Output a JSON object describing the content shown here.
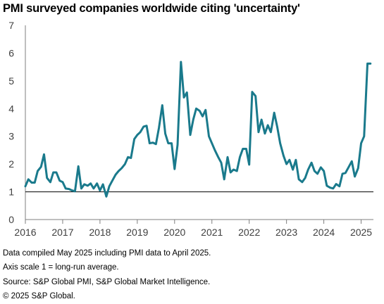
{
  "title": "PMI surveyed companies worldwide citing 'uncertainty'",
  "notes": [
    "Data compiled May 2025 including PMI data to April 2025.",
    "Axis scale 1 = long-run average.",
    "Source: S&P Global PMI, S&P Global Market Intelligence.",
    "© 2025 S&P Global."
  ],
  "colors": {
    "series": "#1a7a8c",
    "axis": "#000000",
    "text": "#404040"
  },
  "chart_data": {
    "type": "line",
    "title": "PMI surveyed companies worldwide citing 'uncertainty'",
    "xlabel": "",
    "ylabel": "",
    "xlim": [
      2016.0,
      2025.33
    ],
    "ylim": [
      0,
      7
    ],
    "yticks": [
      "0",
      "1",
      "2",
      "3",
      "4",
      "5",
      "6",
      "7"
    ],
    "xticks": [
      "2016",
      "2017",
      "2018",
      "2019",
      "2020",
      "2021",
      "2022",
      "2023",
      "2024",
      "2025"
    ],
    "reference_line": 1,
    "grid": false,
    "legend": "none",
    "series": [
      {
        "x": [
          2016.0,
          2016.08,
          2016.17,
          2016.25,
          2016.33,
          2016.42,
          2016.5,
          2016.58,
          2016.67,
          2016.75,
          2016.83,
          2016.92,
          2017.0,
          2017.08,
          2017.17,
          2017.25,
          2017.33,
          2017.42,
          2017.5,
          2017.58,
          2017.67,
          2017.75,
          2017.83,
          2017.92,
          2018.0,
          2018.08,
          2018.17,
          2018.25,
          2018.33,
          2018.42,
          2018.5,
          2018.58,
          2018.67,
          2018.75,
          2018.83,
          2018.92,
          2019.0,
          2019.08,
          2019.17,
          2019.25,
          2019.33,
          2019.42,
          2019.5,
          2019.58,
          2019.67,
          2019.75,
          2019.83,
          2019.92,
          2020.0,
          2020.08,
          2020.17,
          2020.25,
          2020.33,
          2020.42,
          2020.5,
          2020.58,
          2020.67,
          2020.75,
          2020.83,
          2020.92,
          2021.0,
          2021.08,
          2021.17,
          2021.25,
          2021.33,
          2021.42,
          2021.5,
          2021.58,
          2021.67,
          2021.75,
          2021.83,
          2021.92,
          2022.0,
          2022.08,
          2022.17,
          2022.25,
          2022.33,
          2022.42,
          2022.5,
          2022.58,
          2022.67,
          2022.75,
          2022.83,
          2022.92,
          2023.0,
          2023.08,
          2023.17,
          2023.25,
          2023.33,
          2023.42,
          2023.5,
          2023.58,
          2023.67,
          2023.75,
          2023.83,
          2023.92,
          2024.0,
          2024.08,
          2024.17,
          2024.25,
          2024.33,
          2024.42,
          2024.5,
          2024.58,
          2024.67,
          2024.75,
          2024.83,
          2024.92,
          2025.0,
          2025.08,
          2025.17,
          2025.25
        ],
        "y": [
          1.2,
          1.45,
          1.33,
          1.33,
          1.75,
          1.9,
          2.35,
          1.5,
          1.35,
          1.7,
          1.7,
          1.4,
          1.35,
          1.12,
          1.1,
          1.05,
          1.02,
          1.92,
          1.12,
          1.27,
          1.22,
          1.3,
          1.12,
          1.3,
          1.05,
          1.27,
          0.83,
          1.2,
          1.4,
          1.62,
          1.75,
          1.85,
          2.0,
          2.25,
          2.22,
          2.9,
          3.05,
          3.15,
          3.35,
          3.38,
          2.75,
          2.77,
          2.72,
          3.3,
          4.12,
          3.1,
          2.75,
          2.75,
          1.82,
          2.7,
          5.68,
          4.4,
          4.58,
          3.05,
          3.6,
          4.0,
          3.92,
          3.72,
          3.95,
          3.0,
          2.75,
          2.5,
          2.25,
          2.05,
          1.45,
          2.25,
          1.7,
          1.8,
          1.75,
          2.25,
          2.55,
          2.55,
          1.98,
          4.6,
          4.45,
          3.15,
          3.6,
          3.1,
          3.4,
          3.15,
          3.85,
          3.35,
          2.75,
          2.3,
          2.0,
          2.15,
          1.8,
          2.15,
          1.45,
          1.35,
          1.5,
          1.8,
          2.05,
          1.75,
          1.65,
          1.88,
          1.75,
          1.22,
          1.15,
          1.12,
          1.28,
          1.2,
          1.65,
          1.68,
          1.9,
          2.1,
          1.55,
          1.85,
          2.75,
          3.0,
          5.62,
          5.62
        ]
      }
    ]
  }
}
